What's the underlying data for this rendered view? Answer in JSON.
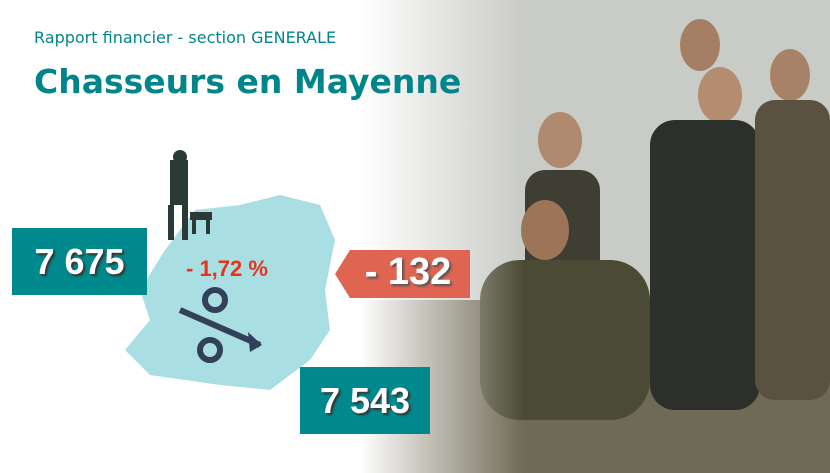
{
  "header": {
    "kicker": "Rapport financier - section GENERALE",
    "title": "Chasseurs en Mayenne"
  },
  "figures": {
    "previous": "7 675",
    "change_percent": "- 1,72 %",
    "change": "- 132",
    "current": "7 543"
  }
}
